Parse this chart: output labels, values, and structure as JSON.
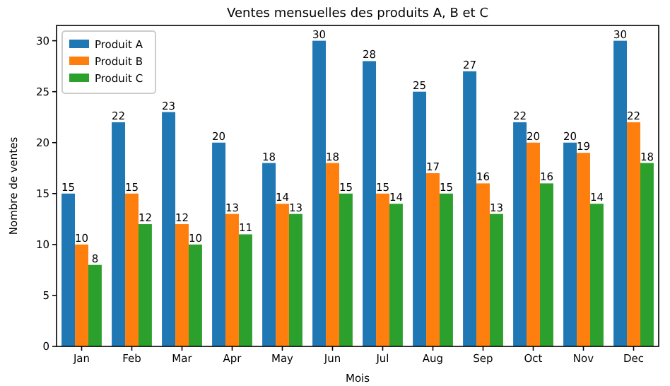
{
  "chart_data": {
    "type": "bar",
    "title": "Ventes mensuelles des produits A, B et C",
    "xlabel": "Mois",
    "ylabel": "Nombre de ventes",
    "categories": [
      "Jan",
      "Feb",
      "Mar",
      "Apr",
      "May",
      "Jun",
      "Jul",
      "Aug",
      "Sep",
      "Oct",
      "Nov",
      "Dec"
    ],
    "series": [
      {
        "name": "Produit A",
        "color": "#1f77b4",
        "values": [
          15,
          22,
          23,
          20,
          18,
          30,
          28,
          25,
          27,
          22,
          20,
          30
        ]
      },
      {
        "name": "Produit B",
        "color": "#ff7f0e",
        "values": [
          10,
          15,
          12,
          13,
          14,
          18,
          15,
          17,
          16,
          20,
          19,
          22
        ]
      },
      {
        "name": "Produit C",
        "color": "#2ca02c",
        "values": [
          8,
          12,
          10,
          11,
          13,
          15,
          14,
          15,
          13,
          16,
          14,
          18
        ]
      }
    ],
    "ylim": [
      0,
      31.5
    ],
    "yticks": [
      0,
      5,
      10,
      15,
      20,
      25,
      30
    ],
    "data_labels": true,
    "legend": "top left",
    "grid": false
  }
}
